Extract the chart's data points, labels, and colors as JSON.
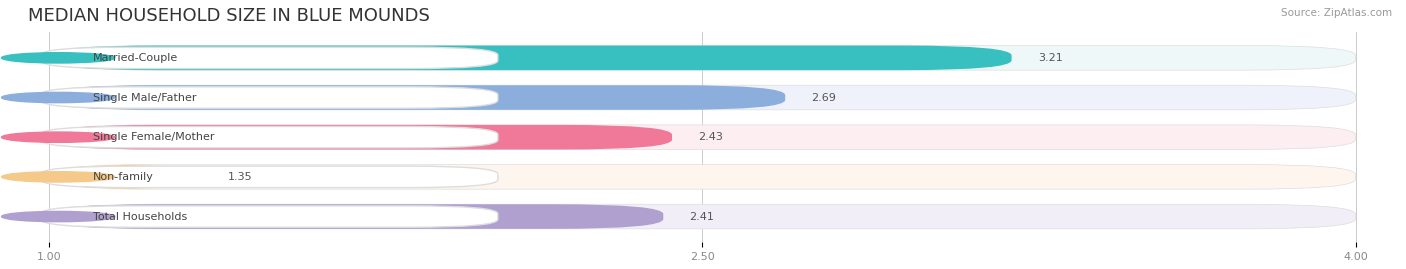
{
  "title": "MEDIAN HOUSEHOLD SIZE IN BLUE MOUNDS",
  "source": "Source: ZipAtlas.com",
  "categories": [
    "Married-Couple",
    "Single Male/Father",
    "Single Female/Mother",
    "Non-family",
    "Total Households"
  ],
  "values": [
    3.21,
    2.69,
    2.43,
    1.35,
    2.41
  ],
  "bar_colors": [
    "#38bfbf",
    "#8baedd",
    "#f07898",
    "#f5c98a",
    "#b0a0d0"
  ],
  "bar_bg_colors": [
    "#eff8f8",
    "#eff2fb",
    "#fdeef2",
    "#fef6ee",
    "#f2eef8"
  ],
  "label_border_colors": [
    "#38bfbf",
    "#8baedd",
    "#f07898",
    "#f5c98a",
    "#b0a0d0"
  ],
  "xlim_min": 1.0,
  "xlim_max": 4.0,
  "xticks": [
    1.0,
    2.5,
    4.0
  ],
  "title_fontsize": 13,
  "value_fontsize": 8,
  "label_fontsize": 8,
  "tick_fontsize": 8,
  "background_color": "#ffffff",
  "bar_area_bg": "#f0f0f0"
}
